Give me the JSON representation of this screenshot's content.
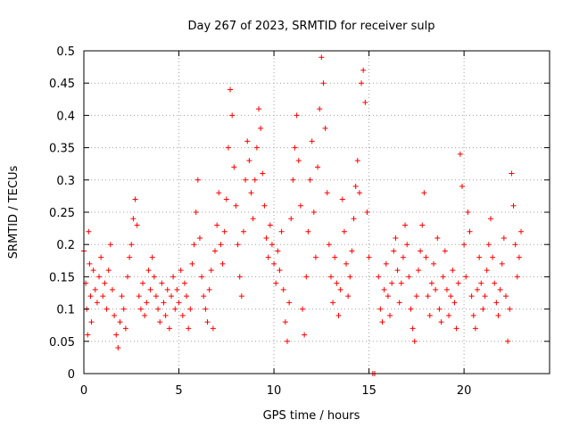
{
  "chart_data": {
    "type": "scatter",
    "title": "Day 267 of 2023, SRMTID for receiver sulp",
    "xlabel": "GPS time / hours",
    "ylabel": "SRMTID / TECUs",
    "xlim": [
      0,
      24.5
    ],
    "ylim": [
      0,
      0.5
    ],
    "xticks": [
      0,
      5,
      10,
      15,
      20
    ],
    "xtick_labels": [
      "0",
      "5",
      "10",
      "15",
      "20"
    ],
    "yticks": [
      0,
      0.05,
      0.1,
      0.15,
      0.2,
      0.25,
      0.3,
      0.35,
      0.4,
      0.45,
      0.5
    ],
    "ytick_labels": [
      "0",
      "0.05",
      "0.1",
      "0.15",
      "0.2",
      "0.25",
      "0.3",
      "0.35",
      "0.4",
      "0.45",
      "0.5"
    ],
    "grid": true,
    "legend": "none",
    "marker": "+",
    "series": [
      {
        "name": "SRMTID",
        "color": "#ff0000",
        "points": [
          [
            0.0,
            0.19
          ],
          [
            0.1,
            0.14
          ],
          [
            0.15,
            0.1
          ],
          [
            0.2,
            0.06
          ],
          [
            0.25,
            0.22
          ],
          [
            0.3,
            0.17
          ],
          [
            0.35,
            0.12
          ],
          [
            0.4,
            0.08
          ],
          [
            0.5,
            0.16
          ],
          [
            0.6,
            0.13
          ],
          [
            0.7,
            0.11
          ],
          [
            0.8,
            0.15
          ],
          [
            0.9,
            0.18
          ],
          [
            1.0,
            0.12
          ],
          [
            1.1,
            0.14
          ],
          [
            1.2,
            0.1
          ],
          [
            1.3,
            0.16
          ],
          [
            1.4,
            0.2
          ],
          [
            1.5,
            0.13
          ],
          [
            1.6,
            0.09
          ],
          [
            1.7,
            0.06
          ],
          [
            1.8,
            0.04
          ],
          [
            1.9,
            0.08
          ],
          [
            2.0,
            0.12
          ],
          [
            2.1,
            0.1
          ],
          [
            2.2,
            0.07
          ],
          [
            2.3,
            0.15
          ],
          [
            2.4,
            0.18
          ],
          [
            2.5,
            0.2
          ],
          [
            2.6,
            0.24
          ],
          [
            2.7,
            0.27
          ],
          [
            2.8,
            0.23
          ],
          [
            2.9,
            0.12
          ],
          [
            3.0,
            0.1
          ],
          [
            3.1,
            0.14
          ],
          [
            3.2,
            0.09
          ],
          [
            3.3,
            0.11
          ],
          [
            3.4,
            0.16
          ],
          [
            3.5,
            0.13
          ],
          [
            3.6,
            0.18
          ],
          [
            3.7,
            0.15
          ],
          [
            3.8,
            0.12
          ],
          [
            3.9,
            0.1
          ],
          [
            4.0,
            0.08
          ],
          [
            4.1,
            0.14
          ],
          [
            4.2,
            0.11
          ],
          [
            4.3,
            0.09
          ],
          [
            4.4,
            0.13
          ],
          [
            4.5,
            0.07
          ],
          [
            4.6,
            0.12
          ],
          [
            4.7,
            0.15
          ],
          [
            4.8,
            0.1
          ],
          [
            4.9,
            0.13
          ],
          [
            5.0,
            0.11
          ],
          [
            5.1,
            0.16
          ],
          [
            5.2,
            0.09
          ],
          [
            5.3,
            0.14
          ],
          [
            5.4,
            0.12
          ],
          [
            5.5,
            0.07
          ],
          [
            5.6,
            0.1
          ],
          [
            5.7,
            0.17
          ],
          [
            5.8,
            0.2
          ],
          [
            5.9,
            0.25
          ],
          [
            6.0,
            0.3
          ],
          [
            6.1,
            0.21
          ],
          [
            6.2,
            0.15
          ],
          [
            6.3,
            0.12
          ],
          [
            6.4,
            0.1
          ],
          [
            6.5,
            0.08
          ],
          [
            6.6,
            0.13
          ],
          [
            6.7,
            0.16
          ],
          [
            6.8,
            0.07
          ],
          [
            6.9,
            0.19
          ],
          [
            7.0,
            0.23
          ],
          [
            7.1,
            0.28
          ],
          [
            7.2,
            0.2
          ],
          [
            7.3,
            0.17
          ],
          [
            7.4,
            0.22
          ],
          [
            7.5,
            0.27
          ],
          [
            7.6,
            0.35
          ],
          [
            7.7,
            0.44
          ],
          [
            7.8,
            0.4
          ],
          [
            7.9,
            0.32
          ],
          [
            8.0,
            0.26
          ],
          [
            8.1,
            0.2
          ],
          [
            8.2,
            0.15
          ],
          [
            8.3,
            0.12
          ],
          [
            8.4,
            0.22
          ],
          [
            8.5,
            0.3
          ],
          [
            8.6,
            0.36
          ],
          [
            8.7,
            0.33
          ],
          [
            8.8,
            0.28
          ],
          [
            8.9,
            0.24
          ],
          [
            9.0,
            0.3
          ],
          [
            9.1,
            0.35
          ],
          [
            9.2,
            0.41
          ],
          [
            9.3,
            0.38
          ],
          [
            9.4,
            0.31
          ],
          [
            9.5,
            0.26
          ],
          [
            9.6,
            0.21
          ],
          [
            9.7,
            0.18
          ],
          [
            9.8,
            0.23
          ],
          [
            9.9,
            0.2
          ],
          [
            10.0,
            0.17
          ],
          [
            10.1,
            0.14
          ],
          [
            10.2,
            0.19
          ],
          [
            10.3,
            0.16
          ],
          [
            10.4,
            0.22
          ],
          [
            10.5,
            0.13
          ],
          [
            10.6,
            0.08
          ],
          [
            10.7,
            0.05
          ],
          [
            10.8,
            0.11
          ],
          [
            10.9,
            0.24
          ],
          [
            11.0,
            0.3
          ],
          [
            11.1,
            0.35
          ],
          [
            11.2,
            0.4
          ],
          [
            11.3,
            0.33
          ],
          [
            11.4,
            0.26
          ],
          [
            11.5,
            0.1
          ],
          [
            11.6,
            0.06
          ],
          [
            11.7,
            0.15
          ],
          [
            11.8,
            0.22
          ],
          [
            11.9,
            0.3
          ],
          [
            12.0,
            0.36
          ],
          [
            12.1,
            0.25
          ],
          [
            12.2,
            0.18
          ],
          [
            12.3,
            0.32
          ],
          [
            12.4,
            0.41
          ],
          [
            12.5,
            0.49
          ],
          [
            12.6,
            0.45
          ],
          [
            12.7,
            0.38
          ],
          [
            12.8,
            0.28
          ],
          [
            12.9,
            0.2
          ],
          [
            13.0,
            0.15
          ],
          [
            13.1,
            0.11
          ],
          [
            13.2,
            0.18
          ],
          [
            13.3,
            0.14
          ],
          [
            13.4,
            0.09
          ],
          [
            13.5,
            0.13
          ],
          [
            13.6,
            0.27
          ],
          [
            13.7,
            0.22
          ],
          [
            13.8,
            0.17
          ],
          [
            13.9,
            0.12
          ],
          [
            14.0,
            0.15
          ],
          [
            14.1,
            0.19
          ],
          [
            14.2,
            0.24
          ],
          [
            14.3,
            0.29
          ],
          [
            14.4,
            0.33
          ],
          [
            14.5,
            0.28
          ],
          [
            14.6,
            0.45
          ],
          [
            14.7,
            0.47
          ],
          [
            14.8,
            0.42
          ],
          [
            14.9,
            0.25
          ],
          [
            15.0,
            0.18
          ],
          [
            15.2,
            0.0
          ],
          [
            15.3,
            0.0
          ],
          [
            15.5,
            0.15
          ],
          [
            15.6,
            0.1
          ],
          [
            15.7,
            0.08
          ],
          [
            15.8,
            0.13
          ],
          [
            15.9,
            0.17
          ],
          [
            16.0,
            0.12
          ],
          [
            16.1,
            0.09
          ],
          [
            16.2,
            0.14
          ],
          [
            16.3,
            0.19
          ],
          [
            16.4,
            0.21
          ],
          [
            16.5,
            0.16
          ],
          [
            16.6,
            0.11
          ],
          [
            16.7,
            0.14
          ],
          [
            16.8,
            0.18
          ],
          [
            16.9,
            0.23
          ],
          [
            17.0,
            0.2
          ],
          [
            17.1,
            0.15
          ],
          [
            17.2,
            0.1
          ],
          [
            17.3,
            0.07
          ],
          [
            17.4,
            0.05
          ],
          [
            17.5,
            0.12
          ],
          [
            17.6,
            0.16
          ],
          [
            17.7,
            0.19
          ],
          [
            17.8,
            0.23
          ],
          [
            17.9,
            0.28
          ],
          [
            18.0,
            0.18
          ],
          [
            18.1,
            0.12
          ],
          [
            18.2,
            0.09
          ],
          [
            18.3,
            0.14
          ],
          [
            18.4,
            0.17
          ],
          [
            18.5,
            0.13
          ],
          [
            18.6,
            0.21
          ],
          [
            18.7,
            0.1
          ],
          [
            18.8,
            0.08
          ],
          [
            18.9,
            0.15
          ],
          [
            19.0,
            0.19
          ],
          [
            19.1,
            0.13
          ],
          [
            19.2,
            0.09
          ],
          [
            19.3,
            0.12
          ],
          [
            19.4,
            0.16
          ],
          [
            19.5,
            0.11
          ],
          [
            19.6,
            0.07
          ],
          [
            19.7,
            0.14
          ],
          [
            19.8,
            0.34
          ],
          [
            19.9,
            0.29
          ],
          [
            20.0,
            0.2
          ],
          [
            20.1,
            0.15
          ],
          [
            20.2,
            0.25
          ],
          [
            20.3,
            0.22
          ],
          [
            20.4,
            0.12
          ],
          [
            20.5,
            0.09
          ],
          [
            20.6,
            0.07
          ],
          [
            20.7,
            0.13
          ],
          [
            20.8,
            0.18
          ],
          [
            20.9,
            0.14
          ],
          [
            21.0,
            0.1
          ],
          [
            21.1,
            0.12
          ],
          [
            21.2,
            0.16
          ],
          [
            21.3,
            0.2
          ],
          [
            21.4,
            0.24
          ],
          [
            21.5,
            0.18
          ],
          [
            21.6,
            0.14
          ],
          [
            21.7,
            0.11
          ],
          [
            21.8,
            0.09
          ],
          [
            21.9,
            0.13
          ],
          [
            22.0,
            0.17
          ],
          [
            22.1,
            0.21
          ],
          [
            22.2,
            0.12
          ],
          [
            22.3,
            0.05
          ],
          [
            22.4,
            0.1
          ],
          [
            22.5,
            0.31
          ],
          [
            22.6,
            0.26
          ],
          [
            22.7,
            0.2
          ],
          [
            22.8,
            0.15
          ],
          [
            22.9,
            0.18
          ],
          [
            23.0,
            0.22
          ]
        ]
      }
    ]
  }
}
